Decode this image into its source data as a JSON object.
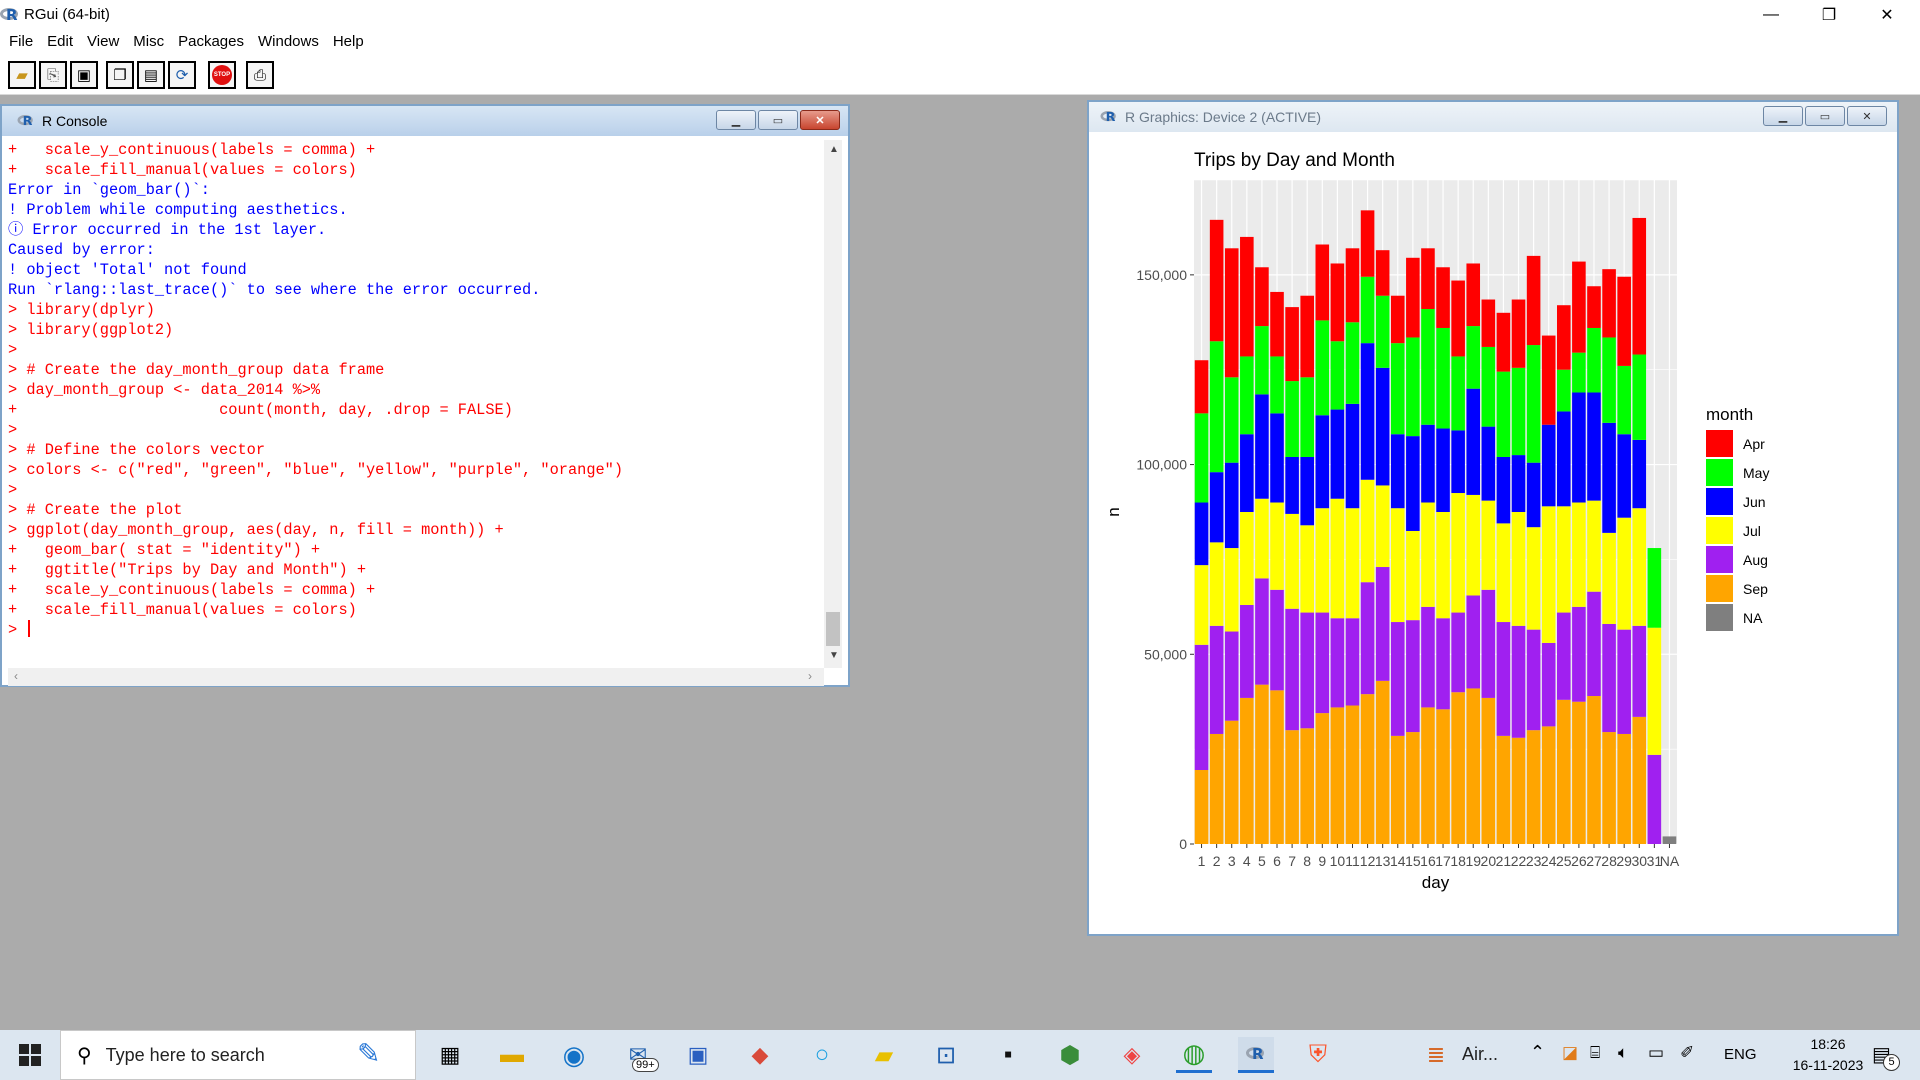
{
  "app": {
    "title": "RGui (64-bit)",
    "minimize": "—",
    "maximize": "❐",
    "close": "✕"
  },
  "menu": [
    "File",
    "Edit",
    "View",
    "Misc",
    "Packages",
    "Windows",
    "Help"
  ],
  "toolbar": {
    "icons": [
      "open-script-icon",
      "load-workspace-icon",
      "save-icon",
      "copy-icon",
      "paste-icon",
      "copy-paste-icon",
      "stop-icon",
      "print-icon"
    ],
    "stop_label": "STOP"
  },
  "console": {
    "title": "R Console",
    "lines": [
      {
        "t": "in",
        "s": "+   scale_y_continuous(labels = comma) +"
      },
      {
        "t": "in",
        "s": "+   scale_fill_manual(values = colors)"
      },
      {
        "t": "out",
        "s": "Error in `geom_bar()`:"
      },
      {
        "t": "out",
        "s": "! Problem while computing aesthetics."
      },
      {
        "t": "out",
        "s": "ⓘ Error occurred in the 1st layer."
      },
      {
        "t": "out",
        "s": "Caused by error:"
      },
      {
        "t": "out",
        "s": "! object 'Total' not found"
      },
      {
        "t": "out",
        "s": "Run `rlang::last_trace()` to see where the error occurred."
      },
      {
        "t": "in",
        "s": "> library(dplyr)"
      },
      {
        "t": "in",
        "s": "> library(ggplot2)"
      },
      {
        "t": "in",
        "s": ">"
      },
      {
        "t": "in",
        "s": "> # Create the day_month_group data frame"
      },
      {
        "t": "in",
        "s": "> day_month_group <- data_2014 %>%"
      },
      {
        "t": "in",
        "s": "+                      count(month, day, .drop = FALSE)"
      },
      {
        "t": "in",
        "s": ">"
      },
      {
        "t": "in",
        "s": "> # Define the colors vector"
      },
      {
        "t": "in",
        "s": "> colors <- c(\"red\", \"green\", \"blue\", \"yellow\", \"purple\", \"orange\")"
      },
      {
        "t": "in",
        "s": ">"
      },
      {
        "t": "in",
        "s": "> # Create the plot"
      },
      {
        "t": "in",
        "s": "> ggplot(day_month_group, aes(day, n, fill = month)) +"
      },
      {
        "t": "in",
        "s": "+   geom_bar( stat = \"identity\") +"
      },
      {
        "t": "in",
        "s": "+   ggtitle(\"Trips by Day and Month\") +"
      },
      {
        "t": "in",
        "s": "+   scale_y_continuous(labels = comma) +"
      },
      {
        "t": "in",
        "s": "+   scale_fill_manual(values = colors)"
      },
      {
        "t": "in",
        "s": "> "
      }
    ]
  },
  "graphics": {
    "title": "R Graphics: Device 2 (ACTIVE)"
  },
  "chart_data": {
    "type": "bar",
    "stacked": true,
    "title": "Trips by Day and Month",
    "xlabel": "day",
    "ylabel": "n",
    "ylim": [
      0,
      175000
    ],
    "yticks": [
      0,
      50000,
      100000,
      150000
    ],
    "ytick_labels": [
      "0",
      "50,000",
      "100,000",
      "150,000"
    ],
    "legend_title": "month",
    "legend_position": "right",
    "background": "#ebebeb",
    "categories": [
      "1",
      "2",
      "3",
      "4",
      "5",
      "6",
      "7",
      "8",
      "9",
      "10",
      "11",
      "12",
      "13",
      "14",
      "15",
      "16",
      "17",
      "18",
      "19",
      "20",
      "21",
      "22",
      "23",
      "24",
      "25",
      "26",
      "27",
      "28",
      "29",
      "30",
      "31",
      "NA"
    ],
    "series": [
      {
        "name": "Sep",
        "color": "#ffa500",
        "values": [
          19500,
          29000,
          32500,
          38500,
          42000,
          40500,
          30000,
          30500,
          34500,
          36000,
          36500,
          39500,
          43000,
          28500,
          29500,
          36000,
          35500,
          40000,
          41000,
          38500,
          28500,
          28000,
          30000,
          31000,
          38000,
          37500,
          39000,
          29500,
          29000,
          33500,
          0,
          0
        ]
      },
      {
        "name": "Aug",
        "color": "#a020f0",
        "values": [
          33000,
          28500,
          23500,
          24500,
          28000,
          26500,
          32000,
          30500,
          26500,
          23500,
          23000,
          29500,
          30000,
          30000,
          29500,
          26500,
          24000,
          21000,
          24500,
          28500,
          30000,
          29500,
          26500,
          22000,
          23000,
          25000,
          27500,
          28500,
          27500,
          24000,
          23500,
          0
        ]
      },
      {
        "name": "Jul",
        "color": "#ffff00",
        "values": [
          21000,
          22000,
          22000,
          24500,
          21000,
          23000,
          25000,
          23000,
          27500,
          31500,
          29000,
          27000,
          21500,
          30000,
          23500,
          27500,
          28000,
          31500,
          26500,
          23500,
          26000,
          30000,
          27000,
          36000,
          28000,
          27500,
          24000,
          24000,
          29500,
          31000,
          33500,
          0
        ]
      },
      {
        "name": "Jun",
        "color": "#0000ff",
        "values": [
          16500,
          18500,
          22500,
          20500,
          27500,
          23500,
          15000,
          18000,
          24500,
          23500,
          27500,
          36000,
          31000,
          19500,
          25000,
          20500,
          22000,
          16500,
          28000,
          19500,
          17500,
          15000,
          17000,
          21500,
          25000,
          29000,
          28500,
          29000,
          22000,
          18000,
          0,
          0
        ]
      },
      {
        "name": "May",
        "color": "#00ff00",
        "values": [
          23500,
          34500,
          22500,
          20500,
          18000,
          15000,
          20000,
          21000,
          25000,
          18000,
          21500,
          17500,
          19000,
          24000,
          26000,
          30500,
          26500,
          19500,
          16500,
          21000,
          22500,
          23000,
          31000,
          0,
          11000,
          10500,
          17000,
          22500,
          18000,
          22500,
          21000,
          0
        ]
      },
      {
        "name": "Apr",
        "color": "#ff0000",
        "values": [
          14000,
          32000,
          34000,
          31500,
          15500,
          17000,
          19500,
          21500,
          20000,
          20500,
          19500,
          17500,
          12000,
          12500,
          21000,
          16000,
          16000,
          20000,
          16500,
          12500,
          15500,
          18000,
          23500,
          23500,
          17000,
          24000,
          11000,
          18000,
          23500,
          36000,
          0,
          0
        ]
      },
      {
        "name": "NA",
        "color": "#7f7f7f",
        "values": [
          0,
          0,
          0,
          0,
          0,
          0,
          0,
          0,
          0,
          0,
          0,
          0,
          0,
          0,
          0,
          0,
          0,
          0,
          0,
          0,
          0,
          0,
          0,
          0,
          0,
          0,
          0,
          0,
          0,
          0,
          0,
          2000
        ]
      }
    ],
    "legend_order": [
      "Apr",
      "May",
      "Jun",
      "Jul",
      "Aug",
      "Sep",
      "NA"
    ]
  },
  "taskbar": {
    "search_placeholder": "Type here to search",
    "mail_badge": "99+",
    "app_label": "Air...",
    "lang": "ENG",
    "time": "18:26",
    "date": "16-11-2023",
    "notif_count": "5"
  }
}
